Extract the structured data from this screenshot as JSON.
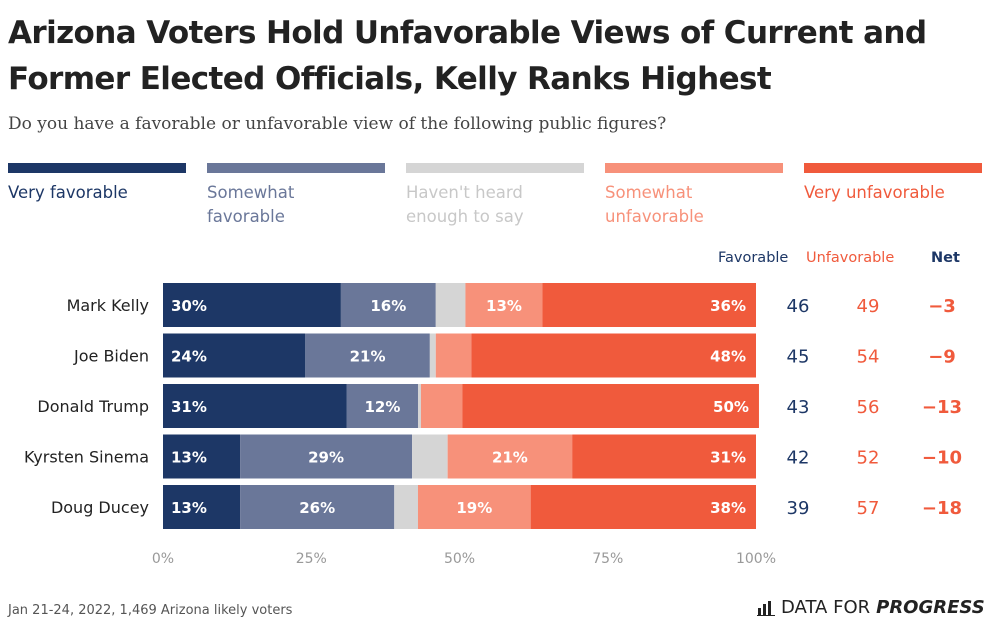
{
  "chart_data": {
    "type": "bar",
    "orientation": "horizontal",
    "stacked": true,
    "title": "Arizona Voters Hold Unfavorable Views of Current and Former Elected Officials, Kelly Ranks Highest",
    "subtitle": "Do you have a favorable or unfavorable view of the following public figures?",
    "categories": [
      "Mark Kelly",
      "Joe Biden",
      "Donald Trump",
      "Kyrsten Sinema",
      "Doug Ducey"
    ],
    "series": [
      {
        "name": "Very favorable",
        "label": "Very favorable",
        "color": "#1d3766",
        "text_color": "#1d3766",
        "values": [
          30,
          24,
          31,
          13,
          13
        ]
      },
      {
        "name": "Somewhat favorable",
        "label": "Somewhat\nfavorable",
        "color": "#6a7799",
        "text_color": "#6a7799",
        "values": [
          16,
          21,
          12,
          29,
          26
        ]
      },
      {
        "name": "Haven't heard enough to say",
        "label": "Haven't heard\nenough to say",
        "color": "#d5d5d5",
        "text_color": "#c8c8c8",
        "values": [
          5,
          1,
          0.5,
          6,
          4
        ]
      },
      {
        "name": "Somewhat unfavorable",
        "label": "Somewhat\nunfavorable",
        "color": "#f7917a",
        "text_color": "#f7917a",
        "values": [
          13,
          6,
          7,
          21,
          19
        ]
      },
      {
        "name": "Very unfavorable",
        "label": "Very unfavorable",
        "color": "#f05a3c",
        "text_color": "#f05a3c",
        "values": [
          36,
          48,
          50,
          31,
          38
        ]
      }
    ],
    "bar_labels_min": 10,
    "x_ticks": [
      "0%",
      "25%",
      "50%",
      "75%",
      "100%"
    ],
    "xlim": [
      0,
      100
    ],
    "grid": false,
    "legend_position": "top",
    "summary_columns": [
      {
        "header": "Favorable",
        "values": [
          "46",
          "45",
          "43",
          "42",
          "39"
        ],
        "color": "#1d3766"
      },
      {
        "header": "Unfavorable",
        "values": [
          "49",
          "54",
          "56",
          "52",
          "57"
        ],
        "color": "#f05a3c"
      },
      {
        "header": "Net",
        "values": [
          "−3",
          "−9",
          "−13",
          "−10",
          "−18"
        ],
        "color": "#f05a3c"
      }
    ]
  },
  "footnote": "Jan 21-24, 2022, 1,469 Arizona likely voters",
  "brand": {
    "light": "DATA FOR",
    "bold": "PROGRESS"
  }
}
